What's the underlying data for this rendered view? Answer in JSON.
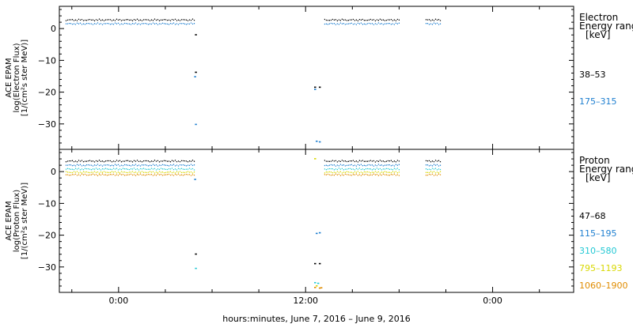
{
  "chart_data": [
    {
      "type": "scatter",
      "panel": "electron",
      "ylabel": [
        "ACE EPAM",
        "log(Electron Flux)",
        "[1/(cm²s ster MeV)]"
      ],
      "ylim": [
        -38,
        7
      ],
      "yticks": [
        0,
        -10,
        -20,
        -30
      ],
      "ytick_labels": [
        "0",
        "−10",
        "−20",
        "−30"
      ],
      "legend": {
        "title": [
          "Electron",
          "Energy range",
          "[keV]"
        ],
        "placement": "right"
      },
      "series": [
        {
          "name": "38–53",
          "color": "#000000",
          "segments": [
            {
              "x": [
                -3.4,
                4.9
              ],
              "y": 2.7
            },
            {
              "x": [
                13.2,
                18.0
              ],
              "y": 2.7
            },
            {
              "x": [
                19.7,
                20.7
              ],
              "y": 2.7
            }
          ],
          "points": [
            {
              "x": 4.95,
              "y": -2.0
            },
            {
              "x": 4.95,
              "y": -13.8
            },
            {
              "x": 12.6,
              "y": -18.5
            },
            {
              "x": 12.9,
              "y": -18.5
            }
          ]
        },
        {
          "name": "175–315",
          "color": "#1e7fd0",
          "segments": [
            {
              "x": [
                -3.4,
                4.9
              ],
              "y": 1.5
            },
            {
              "x": [
                13.2,
                18.0
              ],
              "y": 1.5
            },
            {
              "x": [
                19.7,
                20.7
              ],
              "y": 1.5
            }
          ],
          "points": [
            {
              "x": 4.9,
              "y": -15.2
            },
            {
              "x": 4.95,
              "y": -30.2
            },
            {
              "x": 12.7,
              "y": -35.5
            },
            {
              "x": 12.9,
              "y": -35.7
            },
            {
              "x": 12.6,
              "y": -19.2
            }
          ]
        }
      ]
    },
    {
      "type": "scatter",
      "panel": "proton",
      "ylabel": [
        "ACE EPAM",
        "log(Proton Flux)",
        "[1/(cm²s ster MeV)]"
      ],
      "ylim": [
        -38,
        7
      ],
      "yticks": [
        0,
        -10,
        -20,
        -30
      ],
      "ytick_labels": [
        "0",
        "−10",
        "−20",
        "−30"
      ],
      "legend": {
        "title": [
          "Proton",
          "Energy range",
          "[keV]"
        ],
        "placement": "right"
      },
      "series": [
        {
          "name": "47–68",
          "color": "#000000",
          "segments": [
            {
              "x": [
                -3.4,
                4.9
              ],
              "y": 3.3
            },
            {
              "x": [
                13.2,
                18.0
              ],
              "y": 3.3
            },
            {
              "x": [
                19.7,
                20.7
              ],
              "y": 3.3
            }
          ],
          "points": [
            {
              "x": 4.95,
              "y": -26.0
            },
            {
              "x": 12.6,
              "y": -29.0
            },
            {
              "x": 12.9,
              "y": -29.0
            }
          ]
        },
        {
          "name": "115–195",
          "color": "#1e7fd0",
          "segments": [
            {
              "x": [
                -3.4,
                4.9
              ],
              "y": 2.0
            },
            {
              "x": [
                13.2,
                18.0
              ],
              "y": 2.0
            },
            {
              "x": [
                19.7,
                20.7
              ],
              "y": 2.0
            }
          ],
          "points": [
            {
              "x": 12.7,
              "y": -19.5
            },
            {
              "x": 12.9,
              "y": -19.3
            },
            {
              "x": 4.9,
              "y": -2.5
            }
          ]
        },
        {
          "name": "310–580",
          "color": "#22c8d4",
          "segments": [
            {
              "x": [
                -3.4,
                4.9
              ],
              "y": 0.8
            },
            {
              "x": [
                13.2,
                18.0
              ],
              "y": 0.8
            },
            {
              "x": [
                19.7,
                20.7
              ],
              "y": 0.8
            }
          ],
          "points": [
            {
              "x": 4.95,
              "y": -30.5
            },
            {
              "x": 12.6,
              "y": -35.0
            },
            {
              "x": 12.8,
              "y": -35.2
            }
          ]
        },
        {
          "name": "795–1193",
          "color": "#d8d800",
          "segments": [
            {
              "x": [
                -3.4,
                4.9
              ],
              "y": -0.2
            },
            {
              "x": [
                13.2,
                18.0
              ],
              "y": -0.2
            },
            {
              "x": [
                19.7,
                20.7
              ],
              "y": -0.2
            }
          ],
          "points": [
            {
              "x": 12.6,
              "y": 4.0
            },
            {
              "x": 12.7,
              "y": -36.0
            }
          ]
        },
        {
          "name": "1060–1900",
          "color": "#e08c00",
          "segments": [
            {
              "x": [
                -3.4,
                4.9
              ],
              "y": -1.0
            },
            {
              "x": [
                13.2,
                18.0
              ],
              "y": -1.0
            },
            {
              "x": [
                19.7,
                20.7
              ],
              "y": -1.0
            }
          ],
          "points": [
            {
              "x": 12.6,
              "y": -36.5
            },
            {
              "x": 12.9,
              "y": -36.7
            },
            {
              "x": 13.0,
              "y": -36.6
            }
          ]
        }
      ]
    }
  ],
  "x_axis": {
    "xlim": [
      -3.8,
      29.2
    ],
    "ticks": [
      0,
      12,
      24
    ],
    "tick_labels": [
      "0:00",
      "12:00",
      "0:00"
    ],
    "xlabel": "hours:minutes, June  7, 2016 – June  9, 2016"
  }
}
